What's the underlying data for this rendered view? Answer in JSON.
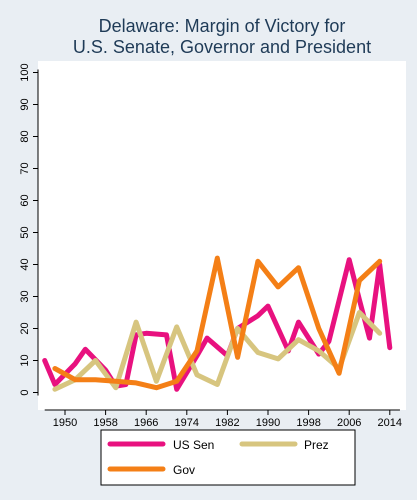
{
  "chart_data": {
    "type": "line",
    "title": [
      "Delaware: Margin of Victory for",
      "U.S. Senate, Governor and President"
    ],
    "xlabel": "",
    "ylabel": "",
    "xlim": [
      1946,
      2016
    ],
    "ylim": [
      0,
      100
    ],
    "x_ticks": [
      1950,
      1958,
      1966,
      1974,
      1982,
      1990,
      1998,
      2006,
      2014
    ],
    "y_ticks": [
      0,
      10,
      20,
      30,
      40,
      50,
      60,
      70,
      80,
      90,
      100
    ],
    "grid": false,
    "legend_position": "bottom",
    "series": [
      {
        "name": "US Sen",
        "color": "#e8117f",
        "points": [
          [
            1946,
            10
          ],
          [
            1948,
            2.5
          ],
          [
            1952,
            9
          ],
          [
            1954,
            13.5
          ],
          [
            1958,
            7
          ],
          [
            1960,
            2
          ],
          [
            1962,
            2.5
          ],
          [
            1964,
            18
          ],
          [
            1966,
            18.5
          ],
          [
            1970,
            18
          ],
          [
            1972,
            1
          ],
          [
            1976,
            11.5
          ],
          [
            1978,
            17
          ],
          [
            1982,
            11.5
          ],
          [
            1984,
            20
          ],
          [
            1988,
            24
          ],
          [
            1990,
            27
          ],
          [
            1994,
            13
          ],
          [
            1996,
            22
          ],
          [
            2000,
            12
          ],
          [
            2002,
            16
          ],
          [
            2006,
            41.5
          ],
          [
            2008,
            29
          ],
          [
            2010,
            17
          ],
          [
            2012,
            40
          ],
          [
            2014,
            14
          ]
        ]
      },
      {
        "name": "Prez",
        "color": "#d7c57f",
        "points": [
          [
            1948,
            1
          ],
          [
            1952,
            4
          ],
          [
            1956,
            10
          ],
          [
            1960,
            1.5
          ],
          [
            1964,
            22
          ],
          [
            1968,
            3.5
          ],
          [
            1972,
            20.5
          ],
          [
            1976,
            5.5
          ],
          [
            1980,
            2.5
          ],
          [
            1984,
            20
          ],
          [
            1988,
            12.5
          ],
          [
            1992,
            10.5
          ],
          [
            1996,
            16.5
          ],
          [
            2000,
            13
          ],
          [
            2004,
            7.5
          ],
          [
            2008,
            25
          ],
          [
            2012,
            18.5
          ]
        ]
      },
      {
        "name": "Gov",
        "color": "#f47f16",
        "points": [
          [
            1948,
            7.5
          ],
          [
            1952,
            4
          ],
          [
            1956,
            4
          ],
          [
            1960,
            3.5
          ],
          [
            1964,
            3
          ],
          [
            1968,
            1.5
          ],
          [
            1972,
            3.5
          ],
          [
            1976,
            13
          ],
          [
            1980,
            42
          ],
          [
            1984,
            11
          ],
          [
            1988,
            41
          ],
          [
            1992,
            33
          ],
          [
            1996,
            39
          ],
          [
            2000,
            20
          ],
          [
            2004,
            6
          ],
          [
            2008,
            35
          ],
          [
            2012,
            41
          ]
        ]
      }
    ]
  }
}
